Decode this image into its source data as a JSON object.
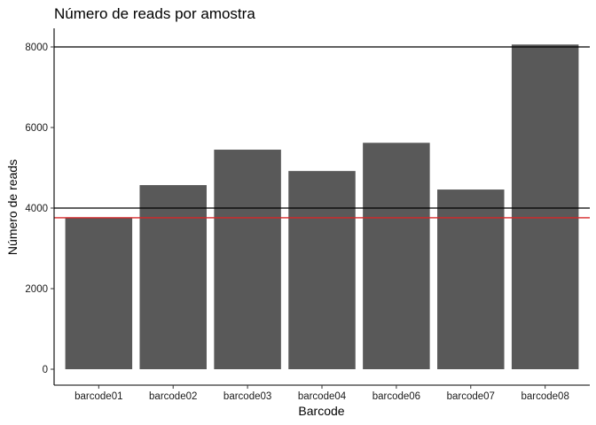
{
  "chart_data": {
    "type": "bar",
    "title": "Número de reads por amostra",
    "xlabel": "Barcode",
    "ylabel": "Número de reads",
    "categories": [
      "barcode01",
      "barcode02",
      "barcode03",
      "barcode04",
      "barcode06",
      "barcode07",
      "barcode08"
    ],
    "values": [
      3760,
      4570,
      5450,
      4920,
      5620,
      4460,
      8060
    ],
    "ylim": [
      0,
      8200
    ],
    "yticks": [
      0,
      2000,
      4000,
      6000,
      8000
    ],
    "ytick_labels": [
      "0",
      "2000",
      "4000",
      "6000",
      "8000"
    ],
    "reference_lines": [
      {
        "y": 8000,
        "color": "#000000"
      },
      {
        "y": 4000,
        "color": "#000000"
      },
      {
        "y": 3760,
        "color": "#d62728"
      }
    ],
    "bar_color": "#595959",
    "grid": false,
    "legend": "none"
  }
}
